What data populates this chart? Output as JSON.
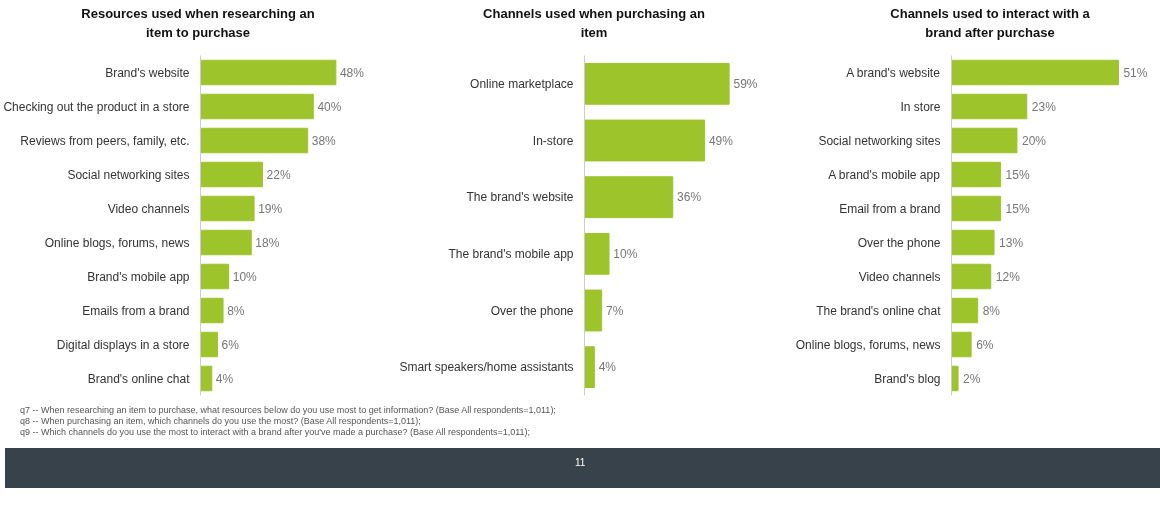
{
  "chart_data": [
    {
      "type": "bar",
      "orientation": "horizontal",
      "title": "Resources used when researching an item to purchase",
      "categories": [
        "Brand's website",
        "Checking out the product in a store",
        "Reviews from peers, family, etc.",
        "Social networking sites",
        "Video channels",
        "Online blogs, forums, news",
        "Brand's mobile app",
        "Emails from a brand",
        "Digital displays in a store",
        "Brand's online chat"
      ],
      "values": [
        48,
        40,
        38,
        22,
        19,
        18,
        10,
        8,
        6,
        4
      ],
      "value_labels": [
        "48%",
        "40%",
        "38%",
        "22%",
        "19%",
        "18%",
        "10%",
        "8%",
        "6%",
        "4%"
      ],
      "color": "#9dc42a",
      "annotations": [
        "q7 -- When researching an item to purchase, what resources below do you use most to get information? (Base All respondents=1,011);"
      ]
    },
    {
      "type": "bar",
      "orientation": "horizontal",
      "title": "Channels used when purchasing an item",
      "categories": [
        "Online marketplace",
        "In-store",
        "The brand's website",
        "The brand's mobile app",
        "Over the phone",
        "Smart speakers/home assistants"
      ],
      "values": [
        59,
        49,
        36,
        10,
        7,
        4
      ],
      "value_labels": [
        "59%",
        "49%",
        "36%",
        "10%",
        "7%",
        "4%"
      ],
      "color": "#9dc42a",
      "annotations": [
        "q8 -- When purchasing an item, which channels do you use the most? (Base All respondents=1,011);"
      ]
    },
    {
      "type": "bar",
      "orientation": "horizontal",
      "title": "Channels used to interact with a brand after purchase",
      "categories": [
        "A brand's website",
        "In store",
        "Social networking sites",
        "A brand's mobile app",
        "Email from a brand",
        "Over the phone",
        "Video channels",
        "The brand's online chat",
        "Online blogs, forums, news",
        "Brand's blog"
      ],
      "values": [
        51,
        23,
        20,
        15,
        15,
        13,
        12,
        8,
        6,
        2
      ],
      "value_labels": [
        "51%",
        "23%",
        "20%",
        "15%",
        "15%",
        "13%",
        "12%",
        "8%",
        "6%",
        "2%"
      ],
      "color": "#9dc42a",
      "annotations": [
        "q9 -- Which channels do you use the most to interact with a brand after you've made a purchase? (Base All respondents=1,011);",
        "11"
      ]
    }
  ]
}
